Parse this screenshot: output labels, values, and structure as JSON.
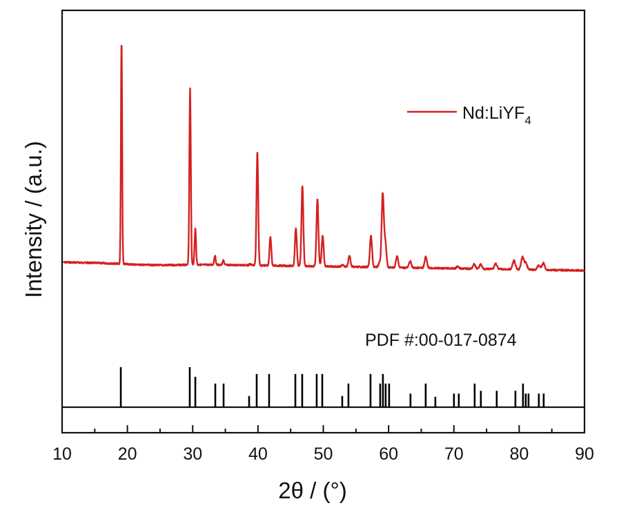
{
  "chart_data": {
    "type": "line",
    "title": "",
    "xlabel": "2θ / (°)",
    "ylabel": "Intensity / (a.u.)",
    "xlim": [
      10,
      90
    ],
    "xticks": [
      10,
      20,
      30,
      40,
      50,
      60,
      70,
      80,
      90
    ],
    "minor_xticks": [
      15,
      25,
      35,
      45,
      55,
      65,
      75,
      85
    ],
    "grid": false,
    "legend": {
      "position": "upper right",
      "entries": [
        {
          "label": "Nd:LiYF",
          "subscript": "4",
          "color": "#d42020"
        }
      ]
    },
    "series": [
      {
        "name": "Nd:LiYF4",
        "color": "#d42020",
        "baseline_start": 380,
        "baseline_end": 392,
        "peaks_2theta_relative_intensity": [
          {
            "x": 19.1,
            "y": 100
          },
          {
            "x": 29.6,
            "y": 79
          },
          {
            "x": 30.4,
            "y": 16
          },
          {
            "x": 33.4,
            "y": 4
          },
          {
            "x": 34.7,
            "y": 2
          },
          {
            "x": 38.8,
            "y": 0.5
          },
          {
            "x": 39.9,
            "y": 51
          },
          {
            "x": 41.9,
            "y": 13
          },
          {
            "x": 45.8,
            "y": 17
          },
          {
            "x": 46.8,
            "y": 36
          },
          {
            "x": 49.1,
            "y": 30
          },
          {
            "x": 49.9,
            "y": 14
          },
          {
            "x": 53.0,
            "y": 1
          },
          {
            "x": 54.0,
            "y": 5
          },
          {
            "x": 57.3,
            "y": 14
          },
          {
            "x": 58.6,
            "y": 2
          },
          {
            "x": 59.1,
            "y": 33
          },
          {
            "x": 59.5,
            "y": 11
          },
          {
            "x": 61.3,
            "y": 5
          },
          {
            "x": 63.3,
            "y": 3
          },
          {
            "x": 65.7,
            "y": 5
          },
          {
            "x": 70.6,
            "y": 1
          },
          {
            "x": 73.1,
            "y": 2
          },
          {
            "x": 74.1,
            "y": 2
          },
          {
            "x": 76.4,
            "y": 2.5
          },
          {
            "x": 79.2,
            "y": 4
          },
          {
            "x": 80.5,
            "y": 5.5
          },
          {
            "x": 81.0,
            "y": 3
          },
          {
            "x": 83.0,
            "y": 2
          },
          {
            "x": 83.7,
            "y": 3
          }
        ]
      },
      {
        "name": "PDF #:00-017-0874",
        "type": "stick",
        "color": "#000000",
        "sticks_2theta_relative_intensity": [
          {
            "x": 18.99,
            "y": 100
          },
          {
            "x": 29.55,
            "y": 100
          },
          {
            "x": 30.4,
            "y": 76
          },
          {
            "x": 33.46,
            "y": 59
          },
          {
            "x": 34.73,
            "y": 59
          },
          {
            "x": 38.64,
            "y": 28
          },
          {
            "x": 39.8,
            "y": 83
          },
          {
            "x": 41.7,
            "y": 83
          },
          {
            "x": 45.72,
            "y": 83
          },
          {
            "x": 46.77,
            "y": 83
          },
          {
            "x": 48.99,
            "y": 83
          },
          {
            "x": 49.84,
            "y": 83
          },
          {
            "x": 52.9,
            "y": 28
          },
          {
            "x": 53.85,
            "y": 59
          },
          {
            "x": 57.23,
            "y": 83
          },
          {
            "x": 58.71,
            "y": 59
          },
          {
            "x": 59.13,
            "y": 83
          },
          {
            "x": 59.55,
            "y": 59
          },
          {
            "x": 60.08,
            "y": 59
          },
          {
            "x": 63.35,
            "y": 34
          },
          {
            "x": 65.68,
            "y": 59
          },
          {
            "x": 67.16,
            "y": 26
          },
          {
            "x": 70.01,
            "y": 34
          },
          {
            "x": 70.75,
            "y": 34
          },
          {
            "x": 73.18,
            "y": 59
          },
          {
            "x": 74.13,
            "y": 41
          },
          {
            "x": 76.56,
            "y": 41
          },
          {
            "x": 79.42,
            "y": 41
          },
          {
            "x": 80.58,
            "y": 59
          },
          {
            "x": 81.0,
            "y": 34
          },
          {
            "x": 81.43,
            "y": 34
          },
          {
            "x": 83.01,
            "y": 34
          },
          {
            "x": 83.75,
            "y": 34
          }
        ]
      }
    ],
    "annotations": [
      {
        "text": "PDF #:00-017-0874",
        "position": "above reference sticks, right"
      }
    ]
  },
  "labels": {
    "xlabel": "2θ / (°)",
    "ylabel": "Intensity / (a.u.)",
    "legend_main": "Nd:LiYF",
    "legend_sub": "4",
    "ref_card": "PDF #:00-017-0874"
  }
}
